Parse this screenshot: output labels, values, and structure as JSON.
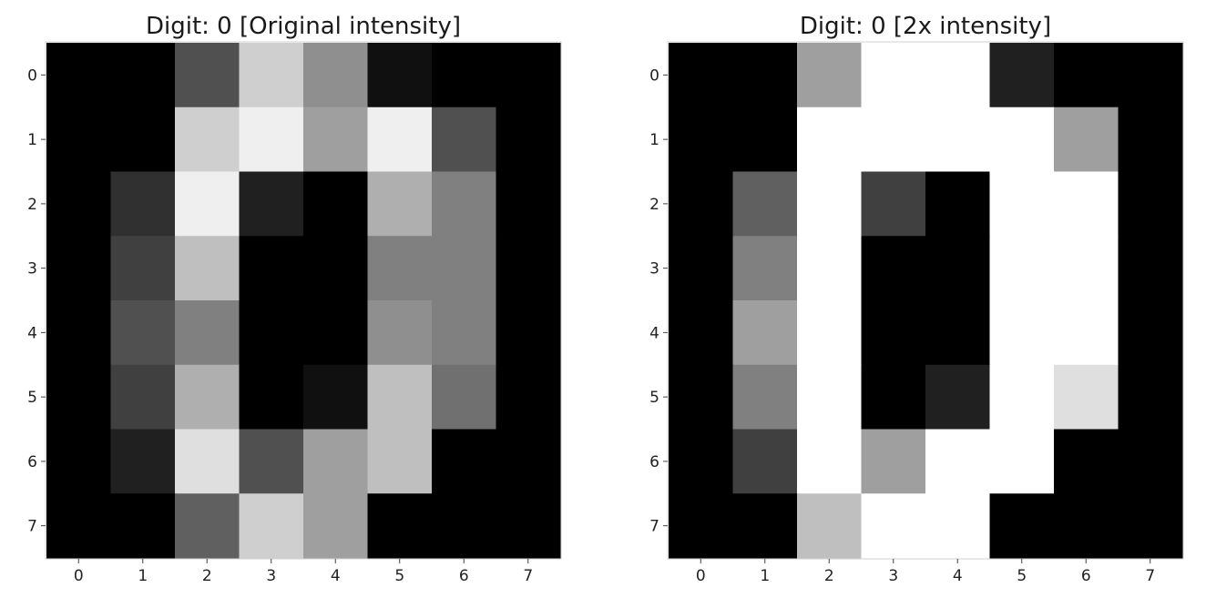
{
  "chart_data": [
    {
      "type": "heatmap",
      "title": "Digit: 0 [Original intensity]",
      "colormap": "gray",
      "value_range": [
        0,
        16
      ],
      "x_ticks": [
        "0",
        "1",
        "2",
        "3",
        "4",
        "5",
        "6",
        "7"
      ],
      "y_ticks": [
        "0",
        "1",
        "2",
        "3",
        "4",
        "5",
        "6",
        "7"
      ],
      "values": [
        [
          0,
          0,
          5,
          13,
          9,
          1,
          0,
          0
        ],
        [
          0,
          0,
          13,
          15,
          10,
          15,
          5,
          0
        ],
        [
          0,
          3,
          15,
          2,
          0,
          11,
          8,
          0
        ],
        [
          0,
          4,
          12,
          0,
          0,
          8,
          8,
          0
        ],
        [
          0,
          5,
          8,
          0,
          0,
          9,
          8,
          0
        ],
        [
          0,
          4,
          11,
          0,
          1,
          12,
          7,
          0
        ],
        [
          0,
          2,
          14,
          5,
          10,
          12,
          0,
          0
        ],
        [
          0,
          0,
          6,
          13,
          10,
          0,
          0,
          0
        ]
      ]
    },
    {
      "type": "heatmap",
      "title": "Digit: 0 [2x intensity]",
      "colormap": "gray",
      "value_range": [
        0,
        16
      ],
      "x_ticks": [
        "0",
        "1",
        "2",
        "3",
        "4",
        "5",
        "6",
        "7"
      ],
      "y_ticks": [
        "0",
        "1",
        "2",
        "3",
        "4",
        "5",
        "6",
        "7"
      ],
      "values": [
        [
          0,
          0,
          10,
          26,
          18,
          2,
          0,
          0
        ],
        [
          0,
          0,
          26,
          30,
          20,
          30,
          10,
          0
        ],
        [
          0,
          6,
          30,
          4,
          0,
          22,
          16,
          0
        ],
        [
          0,
          8,
          24,
          0,
          0,
          16,
          16,
          0
        ],
        [
          0,
          10,
          16,
          0,
          0,
          18,
          16,
          0
        ],
        [
          0,
          8,
          22,
          0,
          2,
          24,
          14,
          0
        ],
        [
          0,
          4,
          28,
          10,
          20,
          24,
          0,
          0
        ],
        [
          0,
          0,
          12,
          26,
          20,
          0,
          0,
          0
        ]
      ]
    }
  ]
}
